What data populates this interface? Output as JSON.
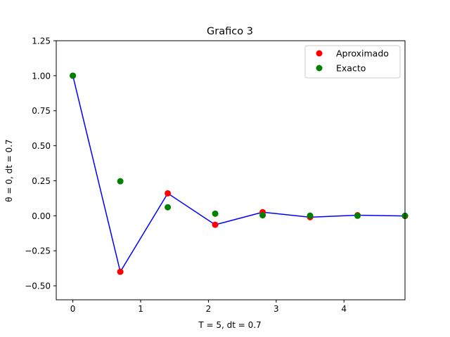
{
  "chart_data": {
    "type": "scatter",
    "title": "Grafico 3",
    "xlabel": "T = 5, dt = 0.7",
    "ylabel": "θ = 0,  dt = 0.7",
    "xlim": [
      -0.245,
      4.9
    ],
    "ylim": [
      -0.6,
      1.25
    ],
    "xticks": [
      0,
      1,
      2,
      3,
      4
    ],
    "xtick_labels": [
      "0",
      "1",
      "2",
      "3",
      "4"
    ],
    "yticks": [
      -0.5,
      -0.25,
      0.0,
      0.25,
      0.5,
      0.75,
      1.0,
      1.25
    ],
    "ytick_labels": [
      "−0.50",
      "−0.25",
      "0.00",
      "0.25",
      "0.50",
      "0.75",
      "1.00",
      "1.25"
    ],
    "grid": false,
    "legend_position": "top-right",
    "x": [
      0.0,
      0.7,
      1.4,
      2.1,
      2.8,
      3.5,
      4.2,
      4.9
    ],
    "series": [
      {
        "name": "Aproximado",
        "kind": "scatter",
        "color": "#ff0000",
        "values": [
          1.0,
          -0.4,
          0.16,
          -0.064,
          0.0256,
          -0.01,
          0.004,
          -0.0016
        ]
      },
      {
        "name": "Exacto",
        "kind": "scatter",
        "color": "#008000",
        "values": [
          1.0,
          0.2466,
          0.0608,
          0.015,
          0.0037,
          0.0009,
          0.0002,
          0.0001
        ]
      },
      {
        "kind": "line",
        "color": "#0000ff",
        "values": [
          1.0,
          -0.4,
          0.16,
          -0.064,
          0.0256,
          -0.01,
          0.004,
          -0.0016
        ]
      }
    ]
  }
}
